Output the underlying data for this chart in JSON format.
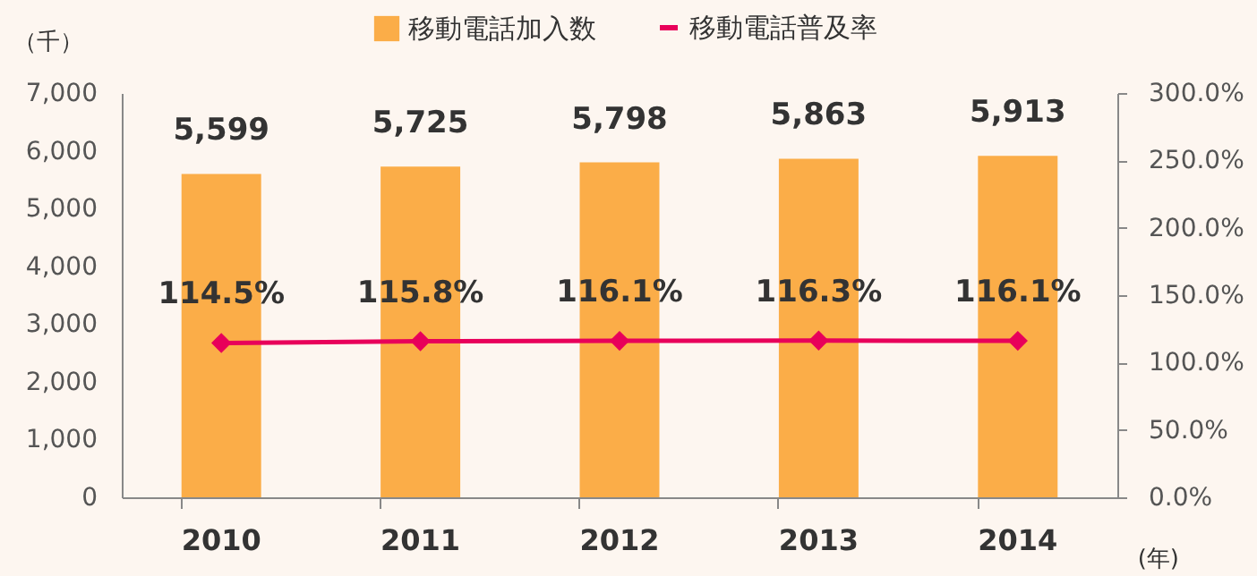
{
  "chart_data": {
    "type": "bar",
    "xlabel": "(年)",
    "ylabel": "（千）",
    "categories": [
      "2010",
      "2011",
      "2012",
      "2013",
      "2014"
    ],
    "series": [
      {
        "name": "移動電話加入数",
        "color": "#fbad48",
        "values": [
          5599,
          5725,
          5798,
          5863,
          5913
        ],
        "value_labels": [
          "5,599",
          "5,725",
          "5,798",
          "5,863",
          "5,913"
        ]
      },
      {
        "name": "移動電話普及率",
        "type": "line",
        "axis": "y2",
        "color": "#e8005a",
        "marker": "diamond",
        "values": [
          114.5,
          115.8,
          116.1,
          116.3,
          116.1
        ],
        "value_labels": [
          "114.5%",
          "115.8%",
          "116.1%",
          "116.3%",
          "116.1%"
        ]
      }
    ],
    "ylim": [
      0,
      7000
    ],
    "yticks": [
      {
        "value": 0,
        "label": "0"
      },
      {
        "value": 1000,
        "label": "1,000"
      },
      {
        "value": 2000,
        "label": "2,000"
      },
      {
        "value": 3000,
        "label": "3,000"
      },
      {
        "value": 4000,
        "label": "4,000"
      },
      {
        "value": 5000,
        "label": "5,000"
      },
      {
        "value": 6000,
        "label": "6,000"
      },
      {
        "value": 7000,
        "label": "7,000"
      }
    ],
    "y2lim": [
      0,
      300
    ],
    "y2ticks": [
      {
        "value": 0,
        "label": "0.0%"
      },
      {
        "value": 50,
        "label": "50.0%"
      },
      {
        "value": 100,
        "label": "100.0%"
      },
      {
        "value": 150,
        "label": "150.0%"
      },
      {
        "value": 200,
        "label": "200.0%"
      },
      {
        "value": 250,
        "label": "250.0%"
      },
      {
        "value": 300,
        "label": "300.0%"
      }
    ],
    "legend": "top",
    "grid": false
  }
}
